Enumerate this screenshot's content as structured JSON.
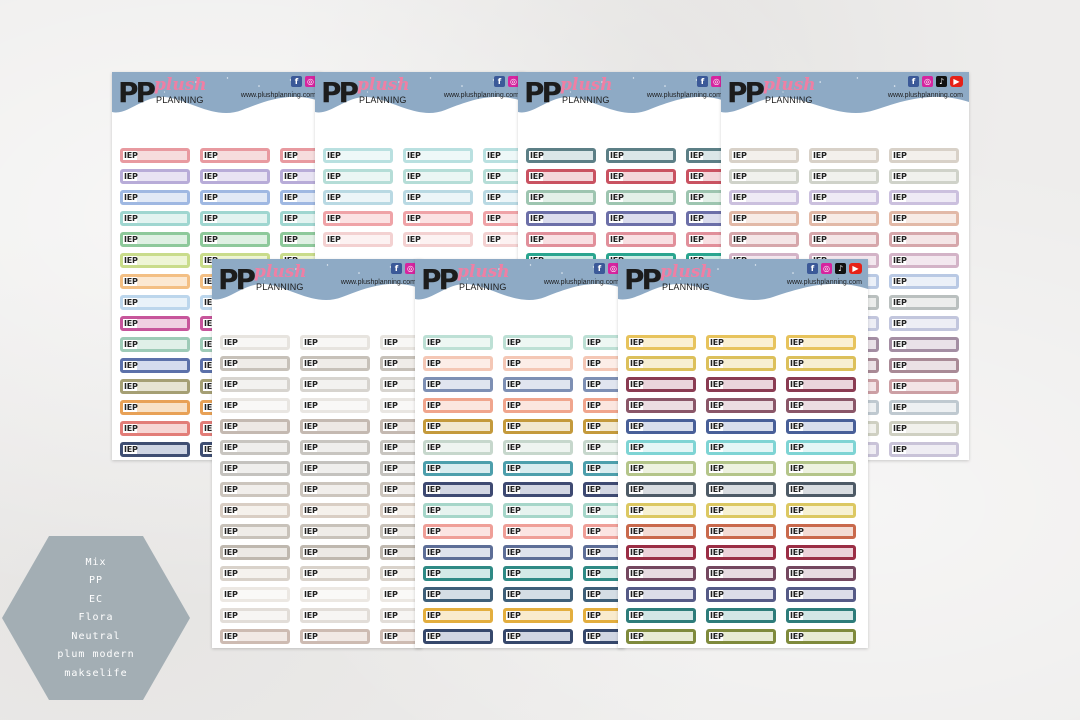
{
  "brand": {
    "mark": "PP",
    "name_script": "plush",
    "name_caps": "PLANNING",
    "website": "www.plushplanning.com"
  },
  "sticker_text": "IEP",
  "colors": {
    "background": "#eeedec",
    "header_band": "#8eaac5",
    "hexagon": "#a3aeb4"
  },
  "sheets": [
    {
      "name": "Mix",
      "icons": [
        "facebook-icon",
        "instagram-icon"
      ],
      "palette": [
        [
          "#e89aa0",
          "#f6dcdd"
        ],
        [
          "#b8acd8",
          "#e8e3f3"
        ],
        [
          "#9fb8e2",
          "#e1e9f6"
        ],
        [
          "#9fd6d0",
          "#e2f3f0"
        ],
        [
          "#8ec99b",
          "#dff0e3"
        ],
        [
          "#c9dc8b",
          "#eef5d6"
        ],
        [
          "#f3bf84",
          "#fbe8d2"
        ],
        [
          "#bcd6ec",
          "#e9f2f9"
        ],
        [
          "#c7559b",
          "#f0cfe2"
        ],
        [
          "#9ecbb7",
          "#e0f0e8"
        ],
        [
          "#5c71aa",
          "#d4dbee"
        ],
        [
          "#a59f74",
          "#e6e3d2"
        ],
        [
          "#e8a156",
          "#f8e1c6"
        ],
        [
          "#e27d78",
          "#f6d6d4"
        ],
        [
          "#3f4e72",
          "#cfd5e3"
        ]
      ]
    },
    {
      "name": "PP",
      "icons": [
        "facebook-icon",
        "instagram-icon"
      ],
      "palette": [
        [
          "#b9e0e0",
          "#eef8f8"
        ],
        [
          "#b5ddd7",
          "#ebf6f4"
        ],
        [
          "#b9d9e3",
          "#ecf5f8"
        ],
        [
          "#efa3a7",
          "#fbe2e3"
        ],
        [
          "#f3d1d1",
          "#fcf2f2"
        ]
      ]
    },
    {
      "name": "EC",
      "icons": [
        "facebook-icon",
        "instagram-icon"
      ],
      "palette": [
        [
          "#5c7f86",
          "#dbe6e8"
        ],
        [
          "#c95261",
          "#f3d6da"
        ],
        [
          "#9dc5b0",
          "#e3f0e8"
        ],
        [
          "#6c6fa8",
          "#dcdded"
        ],
        [
          "#e18f9a",
          "#f8e0e3"
        ],
        [
          "#2aa58f",
          "#d0ede8"
        ]
      ]
    },
    {
      "name": "Flora",
      "icons": [
        "facebook-icon",
        "instagram-icon",
        "tiktok-icon",
        "youtube-icon"
      ],
      "palette": [
        [
          "#d8d1c8",
          "#f3f0ec"
        ],
        [
          "#cfd2c9",
          "#f0f1ed"
        ],
        [
          "#cbc0de",
          "#eeeaf5"
        ],
        [
          "#e2b9a7",
          "#f7ebe5"
        ],
        [
          "#d6a7ab",
          "#f4e6e7"
        ],
        [
          "#d3b3c7",
          "#f3e8ef"
        ],
        [
          "#b9c9e4",
          "#ebf0f8"
        ],
        [
          "#bac0bf",
          "#ecedec"
        ],
        [
          "#c2c6dd",
          "#edeef5"
        ],
        [
          "#a48ea3",
          "#e9e1e8"
        ],
        [
          "#a98a96",
          "#ebe1e5"
        ],
        [
          "#cc9fa4",
          "#f3e4e6"
        ],
        [
          "#bfc9d0",
          "#edf0f2"
        ],
        [
          "#cfd0c2",
          "#f1f1ec"
        ],
        [
          "#c9c3d8",
          "#efedf3"
        ],
        [
          "#d6b2a8",
          "#f5e9e6"
        ]
      ]
    },
    {
      "name": "Neutral",
      "icons": [
        "facebook-icon",
        "instagram-icon"
      ],
      "palette": [
        [
          "#e7e4df",
          "#f8f7f5"
        ],
        [
          "#c7c1b9",
          "#efece8"
        ],
        [
          "#d7d4cf",
          "#f3f2f0"
        ],
        [
          "#e9e6e2",
          "#f9f8f7"
        ],
        [
          "#c4b9b1",
          "#ede8e4"
        ],
        [
          "#c8c5c0",
          "#efeeec"
        ],
        [
          "#c4c2be",
          "#efeeec"
        ],
        [
          "#ccc5bd",
          "#f1eeeb"
        ],
        [
          "#d9cec4",
          "#f5f1ec"
        ],
        [
          "#c8c2ba",
          "#efece8"
        ],
        [
          "#bfb8af",
          "#ece9e5"
        ],
        [
          "#d9d2ca",
          "#f5f2ee"
        ],
        [
          "#ece8e3",
          "#faf9f7"
        ],
        [
          "#e2ddd8",
          "#f7f5f3"
        ],
        [
          "#cdbbb2",
          "#f1e9e5"
        ]
      ]
    },
    {
      "name": "plum modern",
      "icons": [
        "facebook-icon",
        "instagram-icon"
      ],
      "palette": [
        [
          "#bde0d5",
          "#edf7f3"
        ],
        [
          "#f4c7b5",
          "#fcede7"
        ],
        [
          "#7e90b4",
          "#e0e5ef"
        ],
        [
          "#f0a58d",
          "#fbe6df"
        ],
        [
          "#c49a3c",
          "#f2e8cf"
        ],
        [
          "#c6d7cc",
          "#eef4f0"
        ],
        [
          "#4d9fac",
          "#d9ecef"
        ],
        [
          "#3e4a72",
          "#d3d7e3"
        ],
        [
          "#a6d6c9",
          "#e6f3ef"
        ],
        [
          "#ef9f98",
          "#fbe4e2"
        ],
        [
          "#5d6e97",
          "#dde2ec"
        ],
        [
          "#2f8a85",
          "#d2e9e7"
        ],
        [
          "#3e5f79",
          "#d4dde5"
        ],
        [
          "#e3ae3e",
          "#f9ebcd"
        ],
        [
          "#36486c",
          "#d0d6e2"
        ]
      ]
    },
    {
      "name": "makselife",
      "icons": [
        "facebook-icon",
        "instagram-icon",
        "tiktok-icon",
        "youtube-icon"
      ],
      "palette": [
        [
          "#e7c35c",
          "#faf0d2"
        ],
        [
          "#dcc05b",
          "#f7efd2"
        ],
        [
          "#8a3b52",
          "#ead4db"
        ],
        [
          "#8a5668",
          "#ecdde2"
        ],
        [
          "#485f98",
          "#d8deec"
        ],
        [
          "#7ed4d4",
          "#e3f6f6"
        ],
        [
          "#b4c589",
          "#eef2e0"
        ],
        [
          "#4d5a66",
          "#d9dde1"
        ],
        [
          "#dcc862",
          "#f7f1d3"
        ],
        [
          "#c9694c",
          "#f3dcd4"
        ],
        [
          "#9b2e45",
          "#ecd1d8"
        ],
        [
          "#74475f",
          "#e7dbe1"
        ],
        [
          "#555a86",
          "#dcdde9"
        ],
        [
          "#2d7c7a",
          "#d3e6e6"
        ],
        [
          "#7f8a3c",
          "#e8ebd3"
        ]
      ]
    }
  ],
  "collection_list": [
    "Mix",
    "PP",
    "EC",
    "Flora",
    "Neutral",
    "plum modern",
    "makselife"
  ]
}
